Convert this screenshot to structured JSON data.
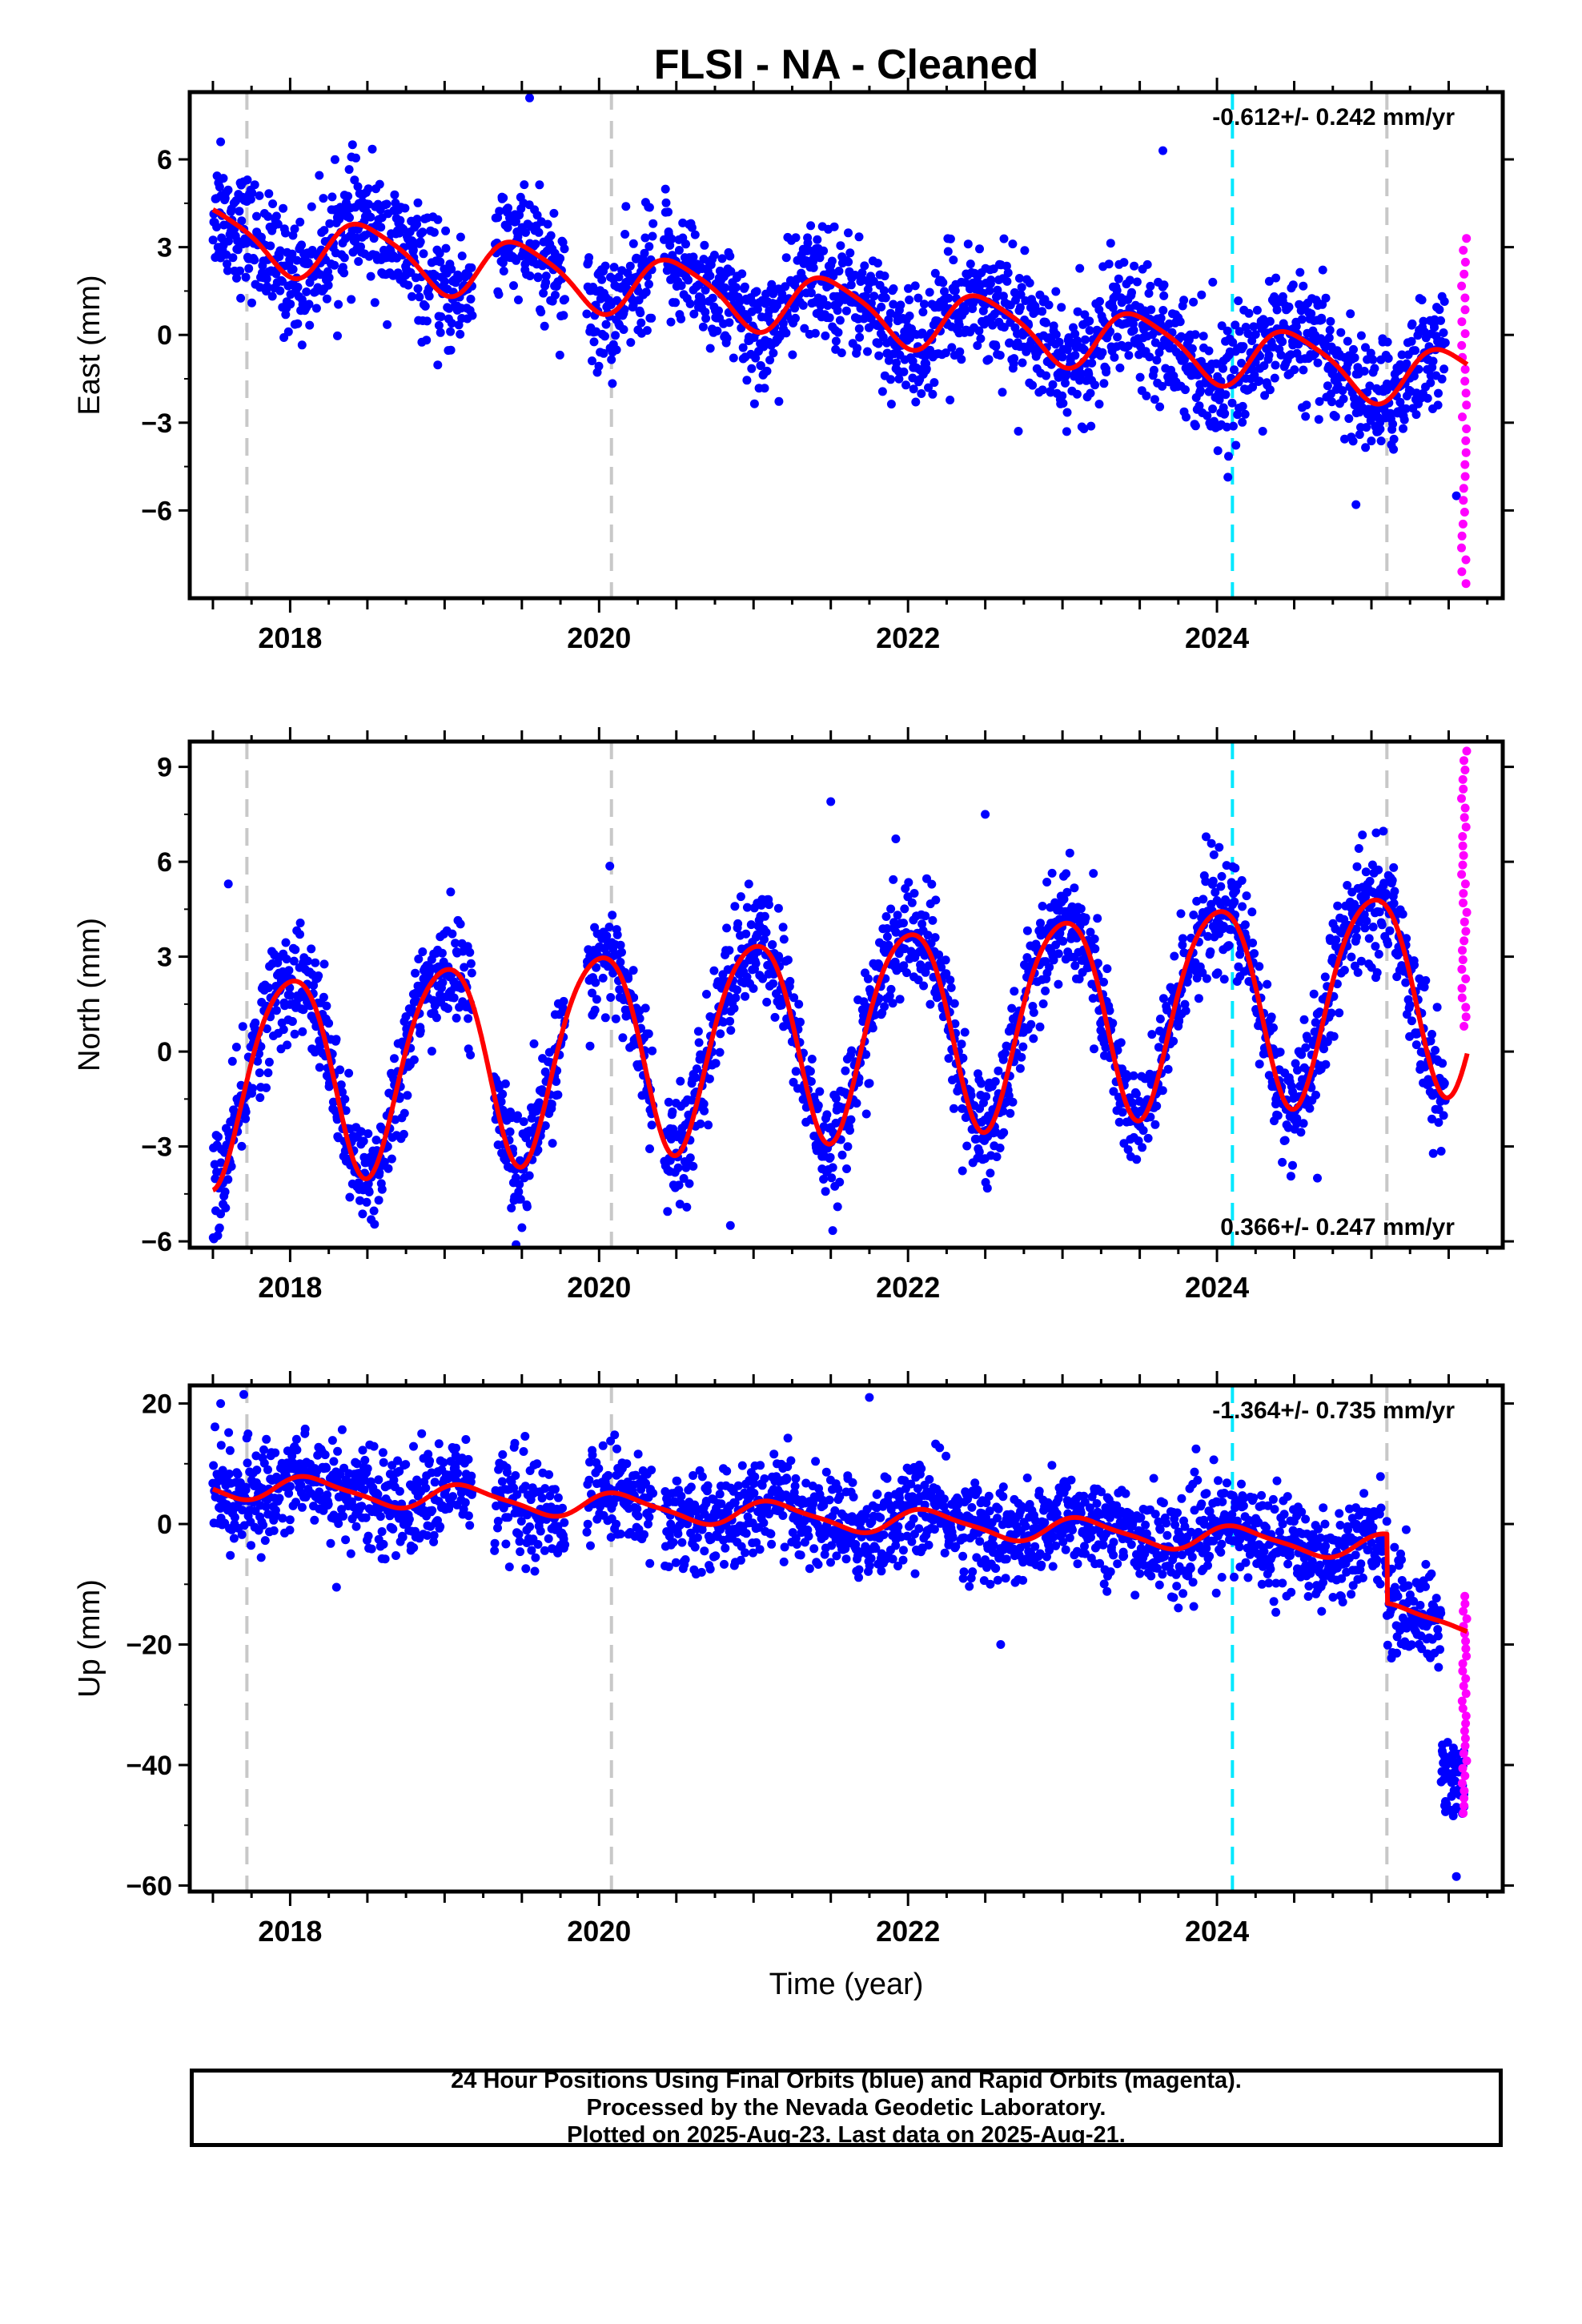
{
  "chart_data": [
    {
      "type": "scatter",
      "panel": "east",
      "title": "FLSI  - NA - Cleaned",
      "ylabel": "East (mm)",
      "xlabel": "",
      "xlim": [
        2017.35,
        2025.85
      ],
      "ylim": [
        -9,
        8.3
      ],
      "yticks": [
        6,
        3,
        0,
        -3,
        -6
      ],
      "ytick_labels": [
        "6",
        "3",
        "0",
        "−3",
        "−6"
      ],
      "xticks": [
        2018,
        2020,
        2022,
        2024
      ],
      "xtick_labels": [
        "2018",
        "2020",
        "2022",
        "2024"
      ],
      "rate_text": "-0.612+/- 0.242 mm/yr",
      "rate_position": "top-right",
      "rate": -0.612,
      "amp_annual": 1.0,
      "amp_semiannual": 0.2,
      "phase_annual": 0.75,
      "phase_semiannual": 0.3,
      "offset": 3.4,
      "steps": [],
      "scatter": 1.0,
      "final_points": 2300,
      "rapid_points": 30,
      "rapid_range": [
        -8.5,
        3.3
      ],
      "outliers": [
        [
          2017.55,
          6.6
        ],
        [
          2019.55,
          8.1
        ],
        [
          2023.65,
          6.3
        ],
        [
          2025.55,
          -5.5
        ],
        [
          2024.9,
          -5.8
        ]
      ]
    },
    {
      "type": "scatter",
      "panel": "north",
      "ylabel": "North (mm)",
      "xlabel": "",
      "xlim": [
        2017.35,
        2025.85
      ],
      "ylim": [
        -6.2,
        9.8
      ],
      "yticks": [
        9,
        6,
        3,
        0,
        -3,
        -6
      ],
      "ytick_labels": [
        "9",
        "6",
        "3",
        "0",
        "−3",
        "−6"
      ],
      "xticks": [
        2018,
        2020,
        2022,
        2024
      ],
      "xtick_labels": [
        "2018",
        "2020",
        "2022",
        "2024"
      ],
      "rate_text": "0.366+/- 0.247 mm/yr",
      "rate_position": "bottom-right",
      "rate": 0.366,
      "amp_annual": 3.2,
      "amp_semiannual": 0.4,
      "phase_annual": 0.25,
      "phase_semiannual": 0.9,
      "offset": -0.8,
      "steps": [],
      "scatter": 0.9,
      "final_points": 2300,
      "rapid_points": 30,
      "rapid_range": [
        0.8,
        9.5
      ],
      "outliers": [
        [
          2017.6,
          5.3
        ],
        [
          2021.5,
          7.9
        ],
        [
          2022.5,
          7.5
        ],
        [
          2020.85,
          -5.5
        ],
        [
          2024.65,
          -4.0
        ]
      ]
    },
    {
      "type": "scatter",
      "panel": "up",
      "ylabel": "Up (mm)",
      "xlabel": "Time (year)",
      "xlim": [
        2017.35,
        2025.85
      ],
      "ylim": [
        -61,
        23
      ],
      "yticks": [
        20,
        0,
        -20,
        -40,
        -60
      ],
      "ytick_labels": [
        "20",
        "0",
        "−20",
        "−40",
        "−60"
      ],
      "xticks": [
        2018,
        2020,
        2022,
        2024
      ],
      "xtick_labels": [
        "2018",
        "2020",
        "2022",
        "2024"
      ],
      "rate_text": "-1.364+/- 0.735 mm/yr",
      "rate_position": "top-right",
      "rate": -1.364,
      "amp_annual": 2.0,
      "amp_semiannual": 0.5,
      "phase_annual": 0.1,
      "phase_semiannual": 0.6,
      "offset": 6.5,
      "steps": [
        [
          2025.1,
          -11.5
        ]
      ],
      "scatter": 4.0,
      "final_points": 2300,
      "rapid_points": 30,
      "rapid_range": [
        -48,
        -12
      ],
      "late_drop": {
        "start": 2025.45,
        "end": 2025.6,
        "ymin": -49,
        "ymax": -36
      },
      "outliers": [
        [
          2017.55,
          20.0
        ],
        [
          2017.7,
          21.5
        ],
        [
          2021.75,
          21.0
        ],
        [
          2022.6,
          -20.0
        ],
        [
          2025.55,
          -58.5
        ],
        [
          2018.3,
          -10.5
        ]
      ]
    }
  ],
  "common": {
    "final_color": "#0000ff",
    "rapid_color": "#ff00ff",
    "model_color": "#ff0000",
    "equipment_change_color": "#c8c8c8",
    "event_color": "#00e8ff",
    "equipment_changes": [
      2017.72,
      2020.08,
      2025.1
    ],
    "events": [
      2024.1
    ]
  },
  "caption": {
    "line1": "24 Hour Positions Using Final Orbits (blue) and Rapid Orbits (magenta).",
    "line2": "Processed by the Nevada Geodetic Laboratory.",
    "line3": "Plotted on 2025-Aug-23. Last data on 2025-Aug-21."
  }
}
